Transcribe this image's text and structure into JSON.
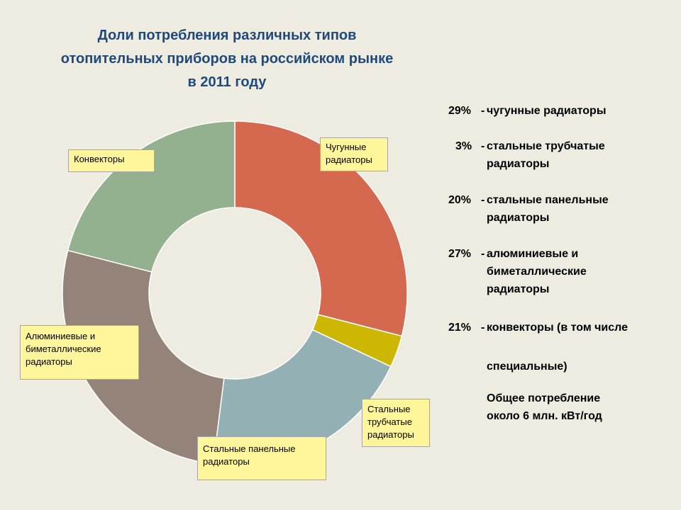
{
  "title": {
    "line1": "Доли потребления различных типов",
    "line2": "отопительных  приборов на российском рынке",
    "line3": "в 2011 году"
  },
  "chart_data": {
    "type": "pie",
    "donut": true,
    "categories": [
      "Чугунные радиаторы",
      "Стальные трубчатые радиаторы",
      "Стальные панельные радиаторы",
      "Алюминиевые и биметаллические радиаторы",
      "Конвекторы"
    ],
    "values": [
      29,
      3,
      20,
      27,
      21
    ],
    "colors": [
      "#D4694F",
      "#CDB702",
      "#93B1B4",
      "#948379",
      "#94B18F"
    ]
  },
  "labels": {
    "cast_iron": [
      "Чугунные",
      "радиаторы"
    ],
    "steel_tubular": [
      "Стальные",
      "трубчатые",
      "радиаторы"
    ],
    "steel_panel": [
      "Стальные панельные",
      "радиаторы"
    ],
    "aluminium": [
      "Алюминиевые и",
      "биметаллические",
      "радиаторы"
    ],
    "convectors": [
      "Конвекторы"
    ]
  },
  "legend": {
    "item1": {
      "pct": "29%",
      "line1": "чугунные радиаторы"
    },
    "item2": {
      "pct": "3%",
      "line1": "стальные трубчатые",
      "line2": "радиаторы"
    },
    "item3": {
      "pct": "20%",
      "line1": "стальные панельные",
      "line2": "радиаторы"
    },
    "item4": {
      "pct": "27%",
      "line1": "алюминиевые и",
      "line2": "биметаллические",
      "line3": "радиаторы"
    },
    "item5": {
      "pct": "21%",
      "line1": "конвекторы (в том числе",
      "line2": "специальные)"
    },
    "total": {
      "line1": "Общее потребление",
      "line2": "около  6 млн. кВт/год"
    },
    "dash": "-"
  }
}
